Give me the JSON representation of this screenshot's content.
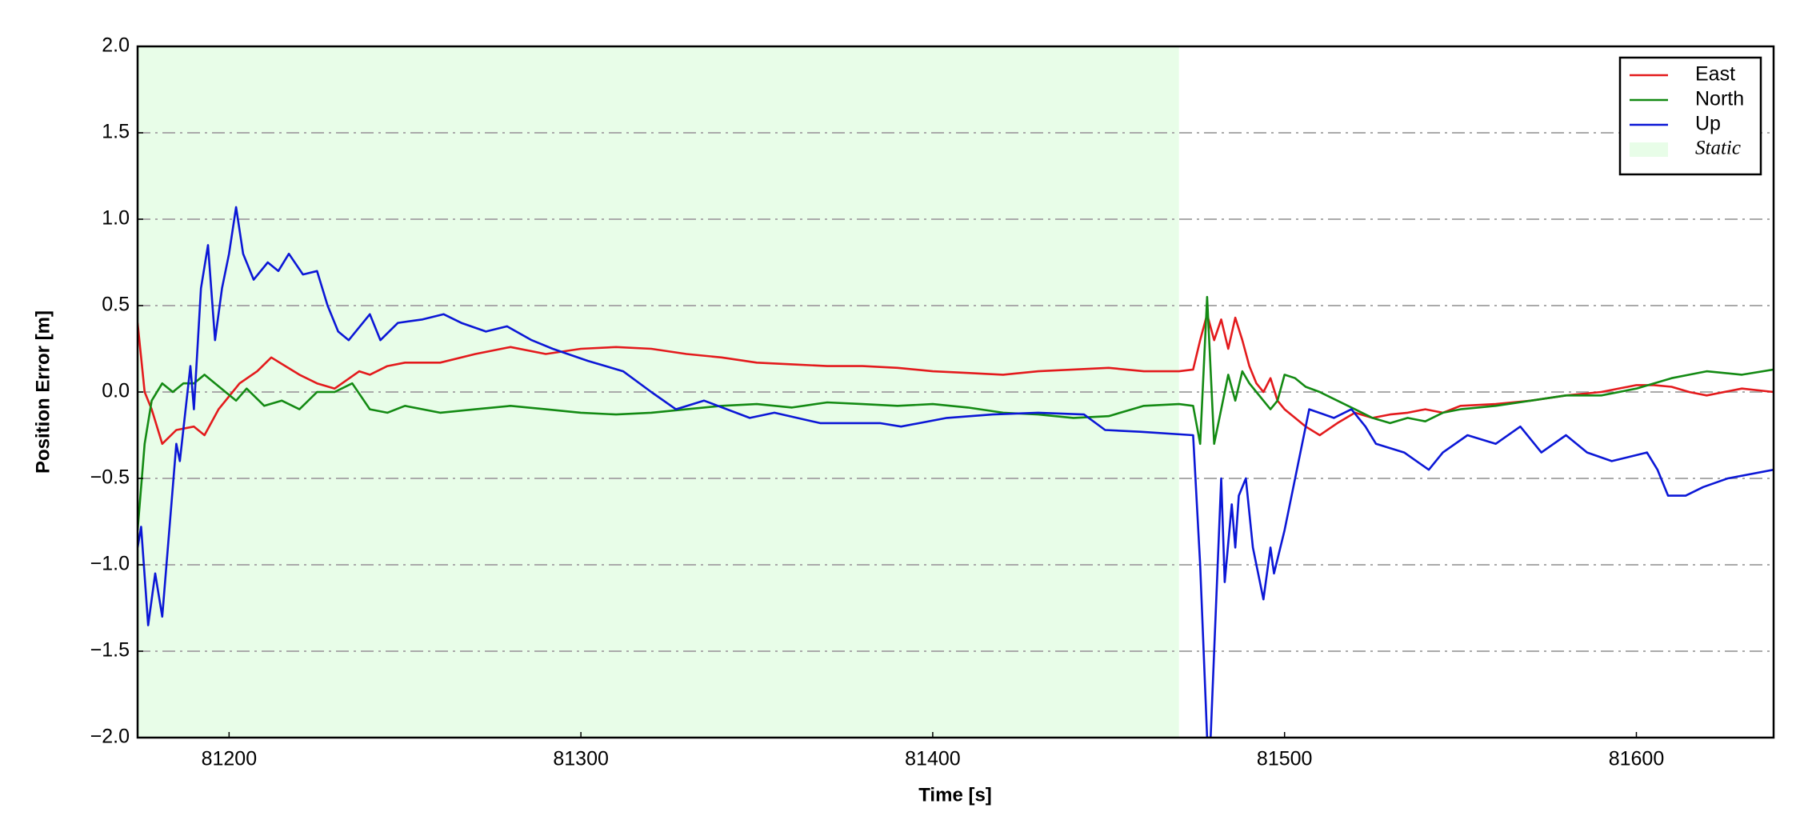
{
  "chart_data": {
    "type": "line",
    "xlabel": "Time [s]",
    "ylabel": "Position Error [m]",
    "xlim": [
      81174,
      81639
    ],
    "ylim": [
      -2,
      2
    ],
    "xticks": [
      81200,
      81300,
      81400,
      81500,
      81600
    ],
    "yticks": [
      {
        "value": -2,
        "label": "−2.0"
      },
      {
        "value": -1.5,
        "label": "−1.5"
      },
      {
        "value": -1,
        "label": "−1.0"
      },
      {
        "value": -0.5,
        "label": "−0.5"
      },
      {
        "value": 0,
        "label": "0.0"
      },
      {
        "value": 0.5,
        "label": "0.5"
      },
      {
        "value": 1,
        "label": "1.0"
      },
      {
        "value": 1.5,
        "label": "1.5"
      },
      {
        "value": 2,
        "label": "2.0"
      }
    ],
    "grid": true,
    "legend": "upper right",
    "shaded": {
      "name": "Static",
      "color": "#e8fde8",
      "x": [
        81174,
        81470
      ]
    },
    "series": [
      {
        "name": "East",
        "color": "#e31a1c",
        "x": [
          81174,
          81176,
          81178,
          81181,
          81185,
          81190,
          81193,
          81197,
          81203,
          81208,
          81212,
          81216,
          81220,
          81225,
          81230,
          81237,
          81240,
          81245,
          81250,
          81260,
          81270,
          81280,
          81290,
          81300,
          81310,
          81320,
          81330,
          81340,
          81350,
          81360,
          81370,
          81380,
          81390,
          81400,
          81410,
          81420,
          81430,
          81440,
          81450,
          81460,
          81470,
          81474,
          81476,
          81478,
          81480,
          81482,
          81484,
          81486,
          81488,
          81490,
          81492,
          81494,
          81496,
          81498,
          81500,
          81503,
          81506,
          81510,
          81515,
          81520,
          81525,
          81530,
          81535,
          81540,
          81545,
          81550,
          81560,
          81570,
          81580,
          81590,
          81600,
          81605,
          81610,
          81615,
          81620,
          81630,
          81639
        ],
        "values": [
          0.4,
          0.0,
          -0.1,
          -0.3,
          -0.22,
          -0.2,
          -0.25,
          -0.1,
          0.05,
          0.12,
          0.2,
          0.15,
          0.1,
          0.05,
          0.02,
          0.12,
          0.1,
          0.15,
          0.17,
          0.17,
          0.22,
          0.26,
          0.22,
          0.25,
          0.26,
          0.25,
          0.22,
          0.2,
          0.17,
          0.16,
          0.15,
          0.15,
          0.14,
          0.12,
          0.11,
          0.1,
          0.12,
          0.13,
          0.14,
          0.12,
          0.12,
          0.13,
          0.3,
          0.45,
          0.3,
          0.42,
          0.25,
          0.43,
          0.3,
          0.15,
          0.05,
          0.0,
          0.08,
          -0.05,
          -0.1,
          -0.15,
          -0.2,
          -0.25,
          -0.18,
          -0.12,
          -0.15,
          -0.13,
          -0.12,
          -0.1,
          -0.12,
          -0.08,
          -0.07,
          -0.05,
          -0.02,
          0.0,
          0.04,
          0.04,
          0.03,
          0.0,
          -0.02,
          0.02,
          0.0
        ]
      },
      {
        "name": "North",
        "color": "#138a13",
        "x": [
          81174,
          81176,
          81178,
          81181,
          81184,
          81187,
          81190,
          81193,
          81196,
          81199,
          81202,
          81205,
          81210,
          81215,
          81220,
          81225,
          81230,
          81235,
          81240,
          81245,
          81250,
          81260,
          81270,
          81280,
          81290,
          81300,
          81310,
          81320,
          81330,
          81340,
          81350,
          81360,
          81370,
          81380,
          81390,
          81400,
          81410,
          81420,
          81430,
          81440,
          81450,
          81460,
          81470,
          81474,
          81476,
          81478,
          81480,
          81482,
          81484,
          81486,
          81488,
          81490,
          81492,
          81494,
          81496,
          81498,
          81500,
          81503,
          81506,
          81510,
          81515,
          81520,
          81525,
          81530,
          81535,
          81540,
          81545,
          81550,
          81560,
          81570,
          81580,
          81590,
          81600,
          81605,
          81610,
          81615,
          81620,
          81630,
          81639
        ],
        "values": [
          -0.8,
          -0.3,
          -0.05,
          0.05,
          0.0,
          0.05,
          0.05,
          0.1,
          0.05,
          0.0,
          -0.05,
          0.02,
          -0.08,
          -0.05,
          -0.1,
          0.0,
          0.0,
          0.05,
          -0.1,
          -0.12,
          -0.08,
          -0.12,
          -0.1,
          -0.08,
          -0.1,
          -0.12,
          -0.13,
          -0.12,
          -0.1,
          -0.08,
          -0.07,
          -0.09,
          -0.06,
          -0.07,
          -0.08,
          -0.07,
          -0.09,
          -0.12,
          -0.13,
          -0.15,
          -0.14,
          -0.08,
          -0.07,
          -0.08,
          -0.3,
          0.55,
          -0.3,
          -0.1,
          0.1,
          -0.05,
          0.12,
          0.05,
          0.0,
          -0.05,
          -0.1,
          -0.05,
          0.1,
          0.08,
          0.03,
          0.0,
          -0.05,
          -0.1,
          -0.15,
          -0.18,
          -0.15,
          -0.17,
          -0.12,
          -0.1,
          -0.08,
          -0.05,
          -0.02,
          -0.02,
          0.02,
          0.05,
          0.08,
          0.1,
          0.12,
          0.1,
          0.13
        ]
      },
      {
        "name": "Up",
        "color": "#0b17d6",
        "x": [
          81174,
          81175,
          81177,
          81179,
          81181,
          81185,
          81186,
          81189,
          81190,
          81192,
          81194,
          81196,
          81198,
          81200,
          81202,
          81204,
          81207,
          81211,
          81214,
          81217,
          81221,
          81225,
          81228,
          81231,
          81234,
          81240,
          81243,
          81248,
          81255,
          81261,
          81266,
          81273,
          81279,
          81286,
          81292,
          81302,
          81312,
          81320,
          81327,
          81335,
          81348,
          81355,
          81368,
          81385,
          81391,
          81404,
          81417,
          81430,
          81443,
          81449,
          81459,
          81474,
          81476,
          81478,
          81479,
          81481,
          81482,
          81483,
          81485,
          81486,
          81487,
          81489,
          81491,
          81494,
          81496,
          81497,
          81500,
          81504,
          81507,
          81514,
          81519,
          81523,
          81526,
          81534,
          81541,
          81545,
          81552,
          81560,
          81567,
          81573,
          81580,
          81586,
          81593,
          81603,
          81606,
          81609,
          81614,
          81619,
          81626,
          81639
        ],
        "values": [
          -0.9,
          -0.78,
          -1.35,
          -1.05,
          -1.3,
          -0.3,
          -0.4,
          0.15,
          -0.1,
          0.6,
          0.85,
          0.3,
          0.6,
          0.8,
          1.07,
          0.8,
          0.65,
          0.75,
          0.7,
          0.8,
          0.68,
          0.7,
          0.5,
          0.35,
          0.3,
          0.45,
          0.3,
          0.4,
          0.42,
          0.45,
          0.4,
          0.35,
          0.38,
          0.3,
          0.25,
          0.18,
          0.12,
          0.0,
          -0.1,
          -0.05,
          -0.15,
          -0.12,
          -0.18,
          -0.18,
          -0.2,
          -0.15,
          -0.13,
          -0.12,
          -0.13,
          -0.22,
          -0.23,
          -0.25,
          -1.0,
          -2.0,
          -2.0,
          -1.0,
          -0.5,
          -1.1,
          -0.65,
          -0.9,
          -0.6,
          -0.5,
          -0.9,
          -1.2,
          -0.9,
          -1.05,
          -0.8,
          -0.4,
          -0.1,
          -0.15,
          -0.1,
          -0.2,
          -0.3,
          -0.35,
          -0.45,
          -0.35,
          -0.25,
          -0.3,
          -0.2,
          -0.35,
          -0.25,
          -0.35,
          -0.4,
          -0.35,
          -0.45,
          -0.6,
          -0.6,
          -0.55,
          -0.5,
          -0.45
        ]
      }
    ]
  }
}
